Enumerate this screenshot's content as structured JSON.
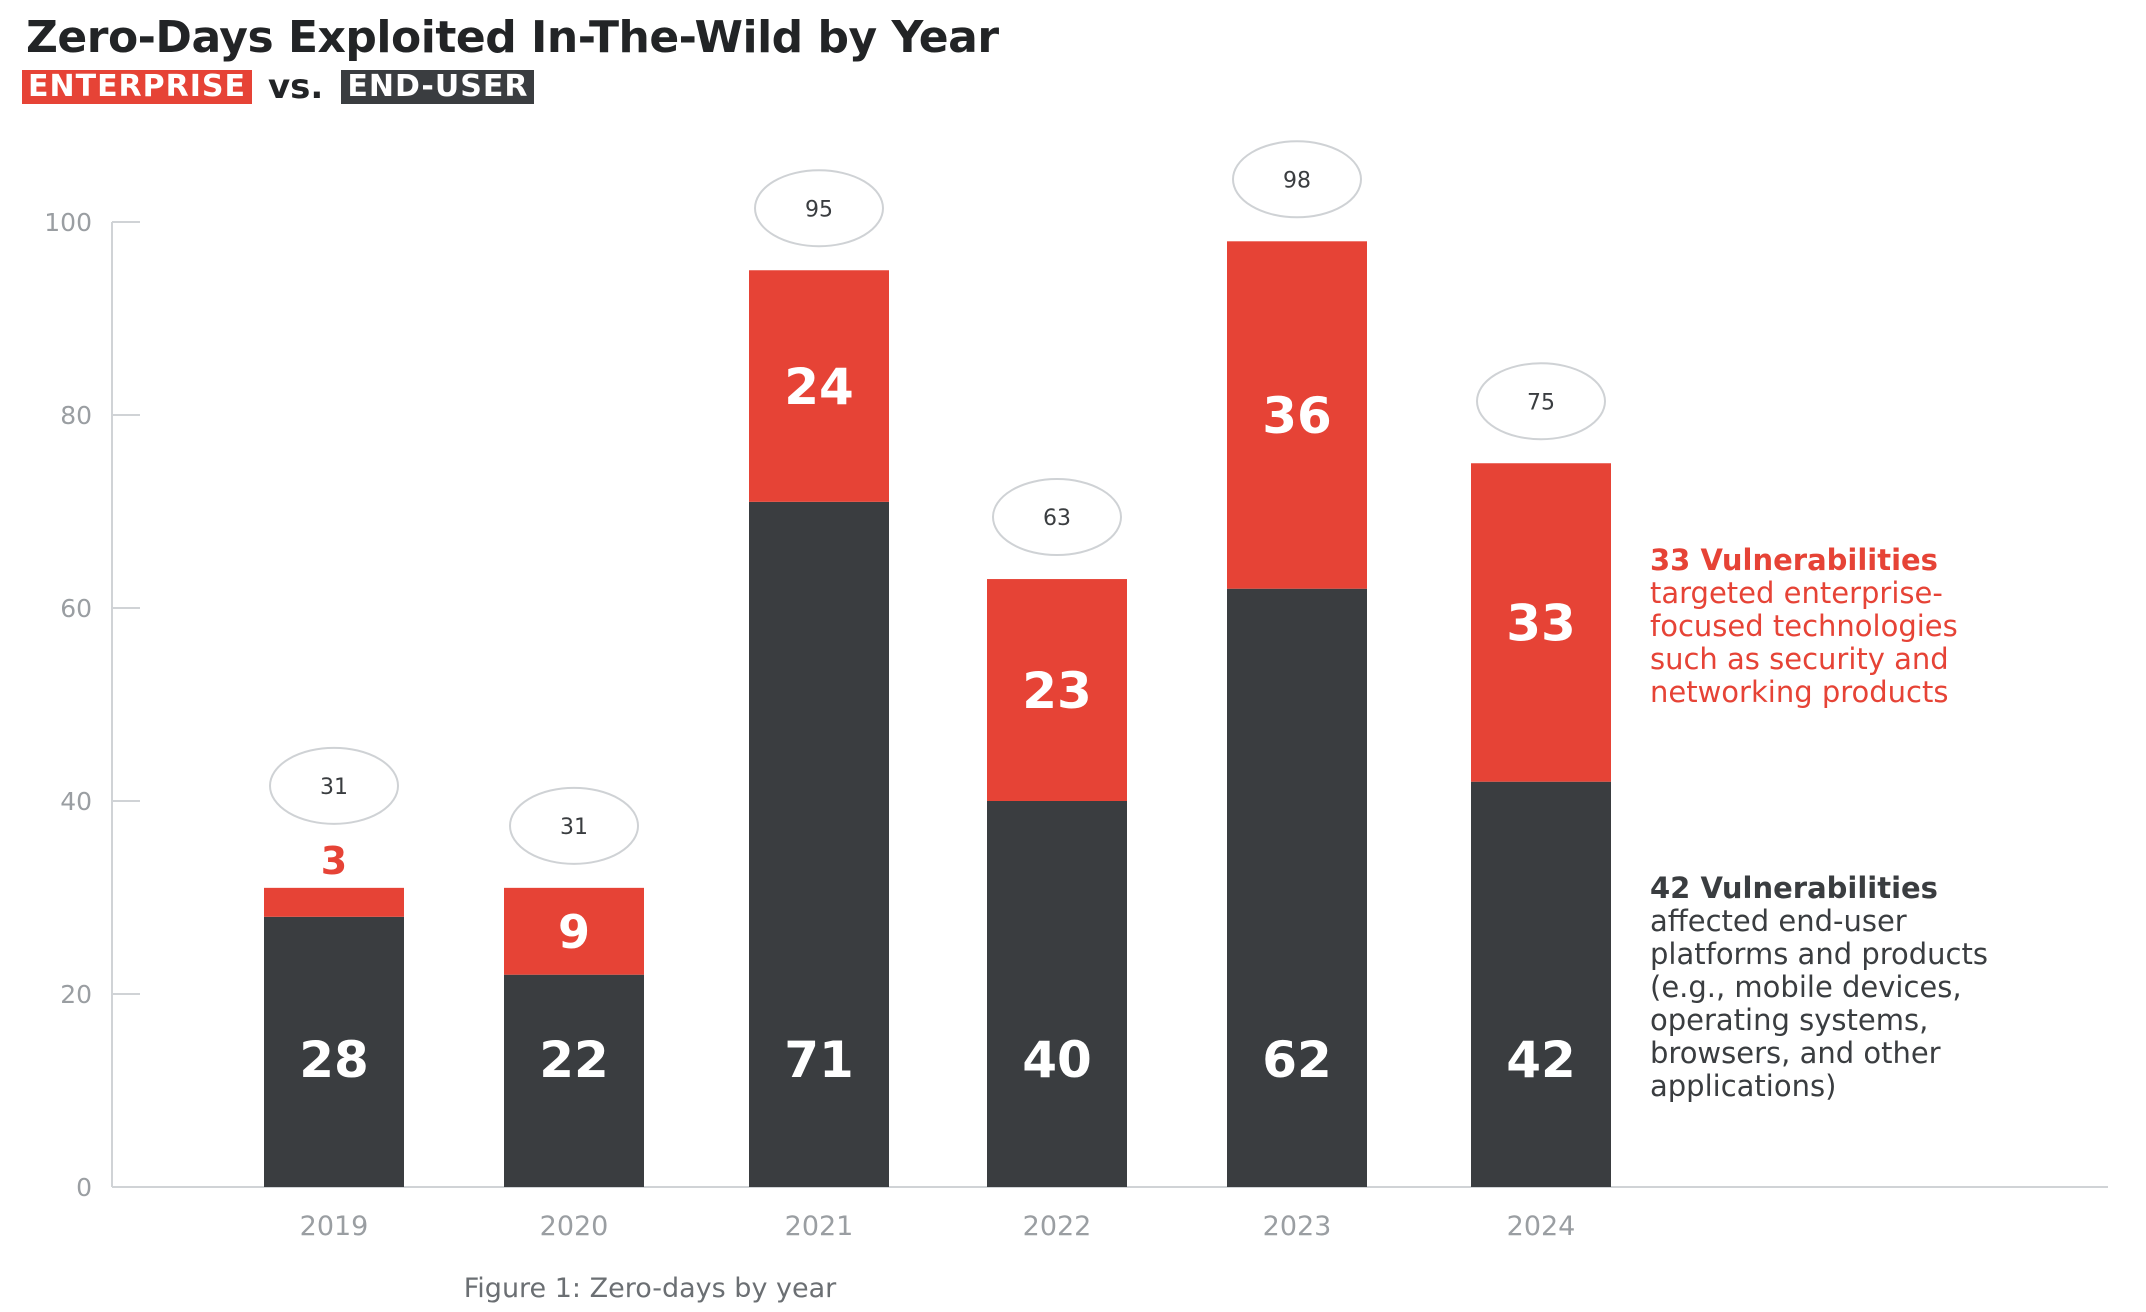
{
  "colors": {
    "enterprise": "#e64336",
    "end_user": "#3a3d40",
    "axis": "#d0d3d6",
    "tick_text": "#9a9ea2",
    "total_circle_stroke": "#cfd2d5"
  },
  "header": {
    "title": "Zero-Days Exploited In-The-Wild by Year",
    "tag_enterprise": "ENTERPRISE",
    "vs_text": "vs.",
    "tag_end_user": "END-USER"
  },
  "notes": {
    "enterprise": {
      "head": "33 Vulnerabilities",
      "lines": [
        "targeted enterprise-",
        "focused technologies",
        "such as security and",
        "networking products"
      ]
    },
    "end_user": {
      "head": "42 Vulnerabilities",
      "lines": [
        "affected end-user",
        "platforms and products",
        "(e.g., mobile devices,",
        "operating systems,",
        "browsers, and other",
        "applications)"
      ]
    }
  },
  "caption": "Figure 1: Zero-days by year",
  "chart_data": {
    "type": "bar",
    "stacked": true,
    "title": "Zero-Days Exploited In-The-Wild by Year",
    "xlabel": "",
    "ylabel": "",
    "categories": [
      "2019",
      "2020",
      "2021",
      "2022",
      "2023",
      "2024"
    ],
    "series": [
      {
        "name": "END-USER",
        "values": [
          28,
          22,
          71,
          40,
          62,
          42
        ]
      },
      {
        "name": "ENTERPRISE",
        "values": [
          3,
          9,
          24,
          23,
          36,
          33
        ]
      }
    ],
    "totals": [
      31,
      31,
      95,
      63,
      98,
      75
    ],
    "ylim": [
      0,
      100
    ],
    "yticks": [
      0,
      20,
      40,
      60,
      80,
      100
    ],
    "grid": false,
    "legend": "top-left"
  }
}
